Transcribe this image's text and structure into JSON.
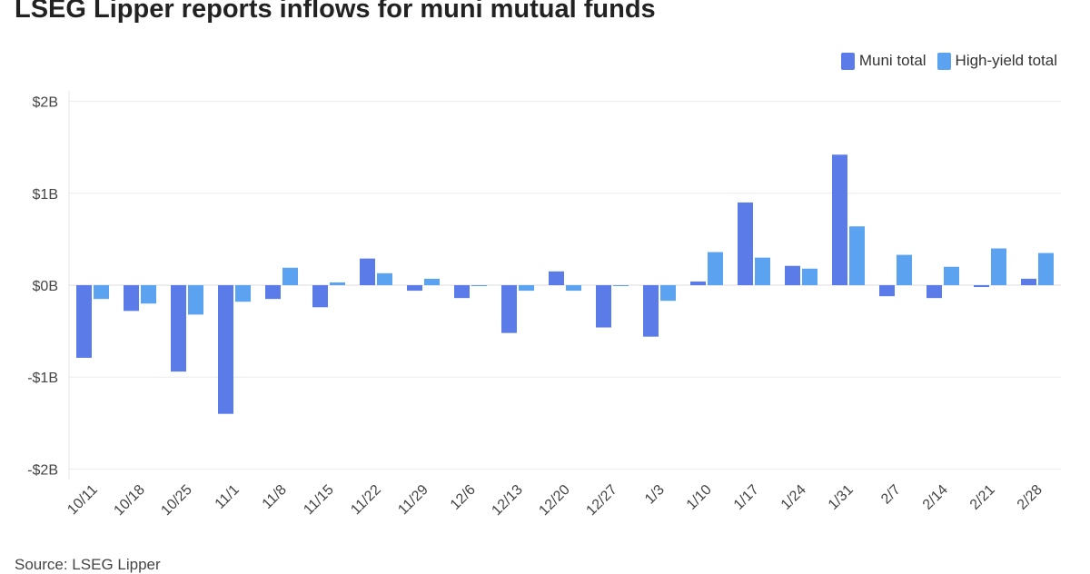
{
  "chart_data": {
    "type": "bar",
    "title": "LSEG Lipper reports inflows for muni mutual funds",
    "source": "Source: LSEG Lipper",
    "xlabel": "",
    "ylabel": "",
    "ylim": [
      -2,
      2
    ],
    "yticks": [
      2,
      1,
      0,
      -1,
      -2
    ],
    "ytick_labels": [
      "$2B",
      "$1B",
      "$0B",
      "-$1B",
      "-$2B"
    ],
    "grid": true,
    "legend_position": "top-right",
    "categories": [
      "10/11",
      "10/18",
      "10/25",
      "11/1",
      "11/8",
      "11/15",
      "11/22",
      "11/29",
      "12/6",
      "12/13",
      "12/20",
      "12/27",
      "1/3",
      "1/10",
      "1/17",
      "1/24",
      "1/31",
      "2/7",
      "2/14",
      "2/21",
      "2/28"
    ],
    "series": [
      {
        "name": "Muni total",
        "color": "#5b7be8",
        "values": [
          -0.79,
          -0.28,
          -0.94,
          -1.4,
          -0.15,
          -0.24,
          0.29,
          -0.06,
          -0.14,
          -0.52,
          0.15,
          -0.46,
          -0.56,
          0.04,
          0.9,
          0.21,
          1.42,
          -0.12,
          -0.14,
          -0.02,
          0.07
        ]
      },
      {
        "name": "High-yield total",
        "color": "#5ba3f0",
        "values": [
          -0.15,
          -0.2,
          -0.32,
          -0.18,
          0.19,
          0.03,
          0.13,
          0.07,
          -0.01,
          -0.06,
          -0.06,
          -0.01,
          -0.17,
          0.36,
          0.3,
          0.18,
          0.64,
          0.33,
          0.2,
          0.4,
          0.35
        ]
      }
    ]
  }
}
